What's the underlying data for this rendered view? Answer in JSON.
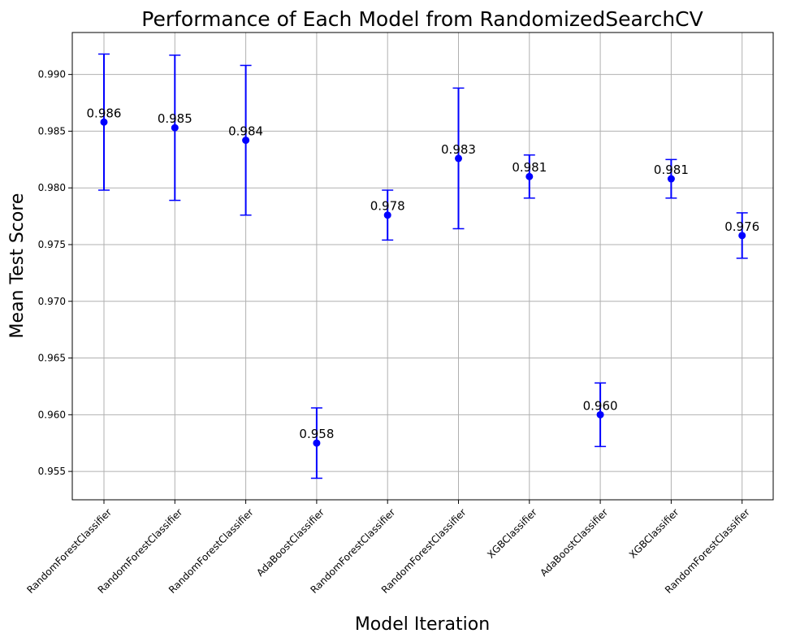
{
  "chart_data": {
    "type": "scatter",
    "title": "Performance of Each Model from RandomizedSearchCV",
    "xlabel": "Model Iteration",
    "ylabel": "Mean Test Score",
    "categories": [
      "RandomForestClassifier",
      "RandomForestClassifier",
      "RandomForestClassifier",
      "AdaBoostClassifier",
      "RandomForestClassifier",
      "RandomForestClassifier",
      "XGBClassifier",
      "AdaBoostClassifier",
      "XGBClassifier",
      "RandomForestClassifier"
    ],
    "values": [
      0.9858,
      0.9853,
      0.9842,
      0.9575,
      0.9776,
      0.9826,
      0.981,
      0.96,
      0.9808,
      0.9758
    ],
    "errors": [
      0.006,
      0.0064,
      0.0066,
      0.0031,
      0.0022,
      0.0062,
      0.0019,
      0.0028,
      0.0017,
      0.002
    ],
    "data_labels": [
      "0.986",
      "0.985",
      "0.984",
      "0.958",
      "0.978",
      "0.983",
      "0.981",
      "0.960",
      "0.981",
      "0.976"
    ],
    "yticks": [
      0.955,
      0.96,
      0.965,
      0.97,
      0.975,
      0.98,
      0.985,
      0.99
    ],
    "ytick_labels": [
      "0.955",
      "0.960",
      "0.965",
      "0.970",
      "0.975",
      "0.980",
      "0.985",
      "0.990"
    ],
    "ylim": [
      0.9525,
      0.9937
    ],
    "grid": true,
    "legend": "none",
    "marker_color": "#0000ff",
    "grid_color": "#b0b0b0"
  }
}
